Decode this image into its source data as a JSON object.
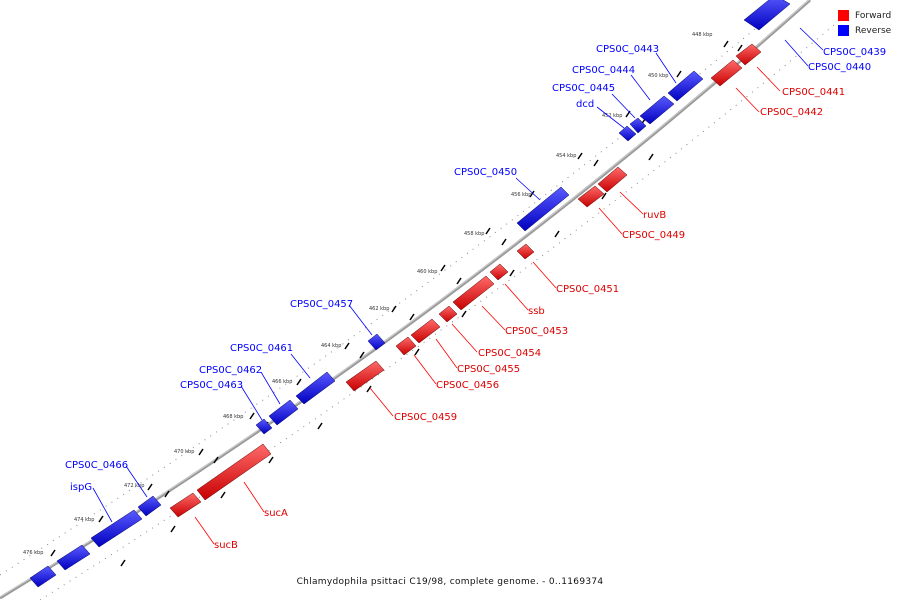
{
  "footer": "Chlamydophila psittaci C19/98, complete genome. - 0..1169374",
  "legend": [
    {
      "label": "Forward",
      "color": "#ff0000"
    },
    {
      "label": "Reverse",
      "color": "#0000ff"
    }
  ],
  "colors": {
    "forward": "#e81414",
    "reverse": "#1a1ae6",
    "backbone": "#777777"
  },
  "ticks": [
    "448 kbp",
    "450 kbp",
    "452 kbp",
    "454 kbp",
    "456 kbp",
    "458 kbp",
    "460 kbp",
    "462 kbp",
    "464 kbp",
    "466 kbp",
    "468 kbp",
    "470 kbp",
    "472 kbp",
    "474 kbp",
    "476 kbp"
  ],
  "genes": {
    "reverse": [
      "CPS0C_0439",
      "CPS0C_0440",
      "CPS0C_0443",
      "CPS0C_0444",
      "CPS0C_0445",
      "dcd",
      "CPS0C_0450",
      "CPS0C_0457",
      "CPS0C_0461",
      "CPS0C_0462",
      "CPS0C_0463",
      "CPS0C_0466",
      "ispG"
    ],
    "forward": [
      "CPS0C_0441",
      "CPS0C_0442",
      "ruvB",
      "CPS0C_0449",
      "CPS0C_0451",
      "ssb",
      "CPS0C_0453",
      "CPS0C_0454",
      "CPS0C_0455",
      "CPS0C_0456",
      "CPS0C_0459",
      "sucA",
      "sucB"
    ]
  }
}
